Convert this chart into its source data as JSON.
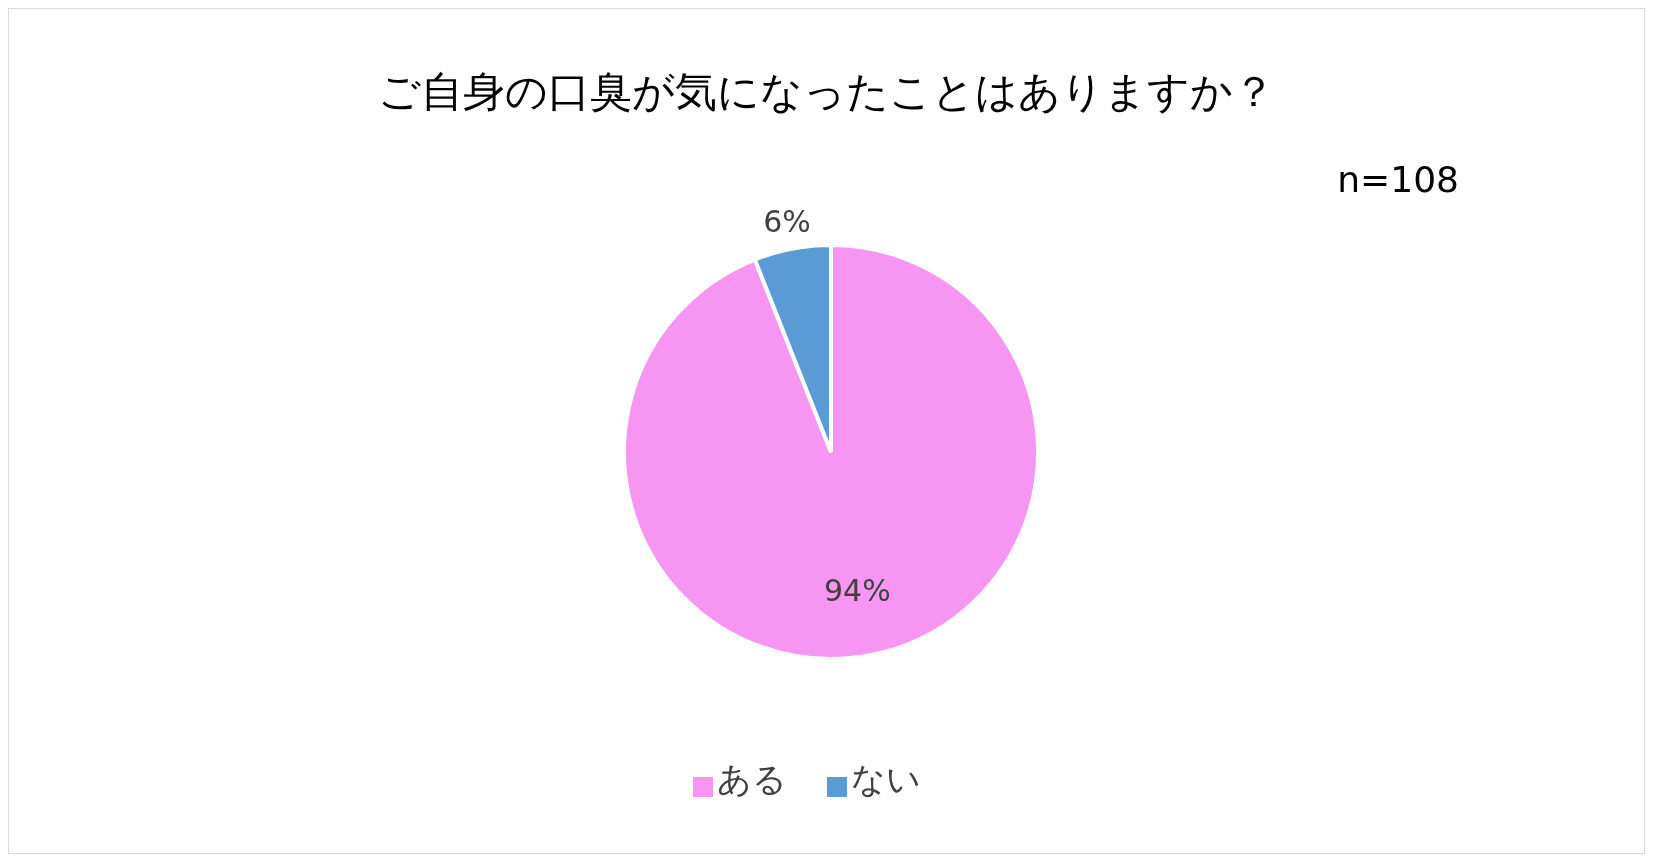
{
  "chart_data": {
    "type": "pie",
    "title": "ご自身の口臭が気になったことはありますか？",
    "annotations": [
      "n=108"
    ],
    "categories": [
      "ある",
      "ない"
    ],
    "values": [
      94,
      6
    ],
    "colors": [
      "#f696f2",
      "#5b9bd5"
    ],
    "value_labels": [
      "94%",
      "6%"
    ],
    "legend": "bottom"
  }
}
